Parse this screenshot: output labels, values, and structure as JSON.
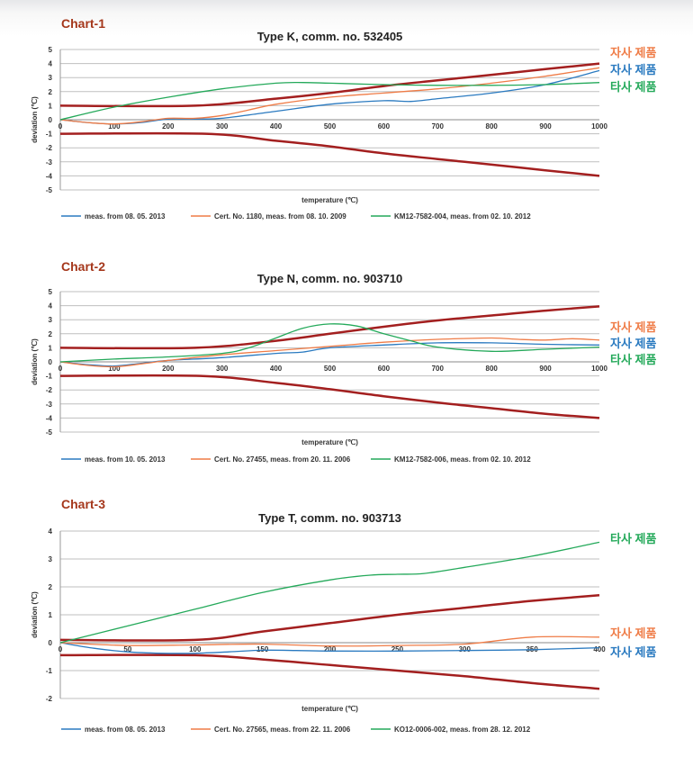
{
  "chart_data": [
    {
      "type": "line",
      "label": "Chart-1",
      "title": "Type K, comm. no. 532405",
      "xlabel": "temperature (℃)",
      "ylabel": "deviation (℃)",
      "xlim": [
        0,
        1000
      ],
      "ylim": [
        -5,
        5
      ],
      "x_ticks": [
        "0",
        "100",
        "200",
        "300",
        "400",
        "500",
        "600",
        "700",
        "800",
        "900",
        "1000"
      ],
      "y_ticks": [
        "5",
        "4",
        "3",
        "2",
        "1",
        "0",
        "-1",
        "-2",
        "-3",
        "-4",
        "-5"
      ],
      "series": [
        {
          "name": "meas. from 08. 05. 2013",
          "color": "#2a7ac0",
          "x": [
            0,
            50,
            100,
            150,
            200,
            250,
            300,
            400,
            500,
            600,
            650,
            700,
            800,
            900,
            1000
          ],
          "y": [
            0,
            -0.2,
            -0.3,
            -0.2,
            0.05,
            0.05,
            0.1,
            0.6,
            1.1,
            1.35,
            1.3,
            1.5,
            1.9,
            2.5,
            3.5
          ]
        },
        {
          "name": "Cert. No. 1180, meas. from 08. 10. 2009",
          "color": "#ef7c47",
          "x": [
            0,
            50,
            100,
            150,
            200,
            250,
            300,
            350,
            400,
            500,
            600,
            700,
            800,
            900,
            1000
          ],
          "y": [
            0,
            -0.2,
            -0.3,
            -0.15,
            0.1,
            0.1,
            0.3,
            0.7,
            1.1,
            1.6,
            1.9,
            2.2,
            2.6,
            3.1,
            3.7
          ]
        },
        {
          "name": "KM12-7582-004, meas. from 02. 10. 2012",
          "color": "#24a95a",
          "x": [
            0,
            100,
            200,
            300,
            400,
            450,
            500,
            600,
            700,
            800,
            900,
            1000
          ],
          "y": [
            0,
            0.9,
            1.6,
            2.2,
            2.6,
            2.65,
            2.6,
            2.5,
            2.45,
            2.45,
            2.5,
            2.65
          ]
        }
      ],
      "tolerance_upper": {
        "x": [
          0,
          250,
          400,
          500,
          600,
          700,
          800,
          900,
          1000
        ],
        "y": [
          1.0,
          1.0,
          1.5,
          1.9,
          2.4,
          2.8,
          3.2,
          3.6,
          4.0
        ]
      },
      "tolerance_lower": {
        "x": [
          0,
          270,
          400,
          500,
          600,
          700,
          800,
          900,
          1000
        ],
        "y": [
          -1.0,
          -1.0,
          -1.5,
          -1.9,
          -2.4,
          -2.8,
          -3.2,
          -3.6,
          -4.0
        ]
      },
      "annotations": [
        {
          "text": "자사 제품",
          "color": "#ef7c47"
        },
        {
          "text": "자사 제품",
          "color": "#2a7ac0"
        },
        {
          "text": "타사 제품",
          "color": "#24a95a"
        }
      ]
    },
    {
      "type": "line",
      "label": "Chart-2",
      "title": "Type N, comm. no. 903710",
      "xlabel": "temperature (℃)",
      "ylabel": "deviation (℃)",
      "xlim": [
        0,
        1000
      ],
      "ylim": [
        -5,
        5
      ],
      "x_ticks": [
        "0",
        "100",
        "200",
        "300",
        "400",
        "500",
        "600",
        "700",
        "800",
        "900",
        "1000"
      ],
      "y_ticks": [
        "5",
        "4",
        "3",
        "2",
        "1",
        "0",
        "-1",
        "-2",
        "-3",
        "-4",
        "-5"
      ],
      "series": [
        {
          "name": "meas. from 10. 05. 2013",
          "color": "#2a7ac0",
          "x": [
            0,
            50,
            100,
            150,
            200,
            300,
            400,
            450,
            500,
            600,
            700,
            800,
            900,
            1000
          ],
          "y": [
            0,
            -0.2,
            -0.3,
            -0.1,
            0.1,
            0.3,
            0.6,
            0.7,
            1.0,
            1.2,
            1.35,
            1.35,
            1.25,
            1.2
          ]
        },
        {
          "name": "Cert. No. 27455, meas. from 20. 11. 2006",
          "color": "#ef7c47",
          "x": [
            0,
            50,
            100,
            150,
            200,
            300,
            400,
            500,
            600,
            700,
            800,
            850,
            900,
            950,
            1000
          ],
          "y": [
            0,
            -0.25,
            -0.35,
            -0.15,
            0.1,
            0.5,
            0.8,
            1.1,
            1.4,
            1.6,
            1.7,
            1.6,
            1.55,
            1.65,
            1.55
          ]
        },
        {
          "name": "KM12-7582-006, meas. from 02. 10. 2012",
          "color": "#24a95a",
          "x": [
            0,
            100,
            200,
            300,
            350,
            400,
            450,
            500,
            550,
            600,
            650,
            700,
            800,
            900,
            1000
          ],
          "y": [
            0,
            0.2,
            0.35,
            0.6,
            1.0,
            1.7,
            2.4,
            2.7,
            2.55,
            2.0,
            1.5,
            1.05,
            0.75,
            0.9,
            1.05
          ]
        }
      ],
      "tolerance_upper": {
        "x": [
          0,
          250,
          400,
          500,
          600,
          700,
          800,
          900,
          1000
        ],
        "y": [
          1.0,
          1.0,
          1.5,
          2.0,
          2.5,
          2.95,
          3.3,
          3.65,
          3.95
        ]
      },
      "tolerance_lower": {
        "x": [
          0,
          260,
          400,
          500,
          600,
          700,
          800,
          900,
          1000
        ],
        "y": [
          -1.0,
          -1.0,
          -1.5,
          -1.95,
          -2.45,
          -2.9,
          -3.3,
          -3.7,
          -4.0
        ]
      },
      "annotations": [
        {
          "text": "자사 제품",
          "color": "#ef7c47"
        },
        {
          "text": "자사 제품",
          "color": "#2a7ac0"
        },
        {
          "text": "타사 제품",
          "color": "#24a95a"
        }
      ]
    },
    {
      "type": "line",
      "label": "Chart-3",
      "title": "Type T, comm. no. 903713",
      "xlabel": "temperature (℃)",
      "ylabel": "deviation (℃)",
      "xlim": [
        0,
        400
      ],
      "ylim": [
        -2,
        4
      ],
      "x_ticks": [
        "0",
        "50",
        "100",
        "150",
        "200",
        "250",
        "300",
        "350",
        "400"
      ],
      "y_ticks": [
        "4",
        "3",
        "2",
        "1",
        "0",
        "-1",
        "-2"
      ],
      "series": [
        {
          "name": "meas. from 08. 05. 2013",
          "color": "#2a7ac0",
          "x": [
            0,
            25,
            50,
            75,
            100,
            125,
            150,
            175,
            200,
            250,
            300,
            350,
            400
          ],
          "y": [
            0,
            -0.2,
            -0.33,
            -0.38,
            -0.38,
            -0.33,
            -0.27,
            -0.28,
            -0.3,
            -0.3,
            -0.28,
            -0.25,
            -0.18
          ]
        },
        {
          "name": "Cert. No. 27565, meas. from 22. 11. 2006",
          "color": "#ef7c47",
          "x": [
            0,
            50,
            100,
            150,
            200,
            250,
            300,
            350,
            400
          ],
          "y": [
            0,
            -0.1,
            -0.08,
            -0.05,
            -0.12,
            -0.1,
            -0.05,
            0.2,
            0.2
          ]
        },
        {
          "name": "KO12-0006-002, meas. from 28. 12. 2012",
          "color": "#24a95a",
          "x": [
            0,
            50,
            100,
            150,
            200,
            230,
            250,
            270,
            300,
            350,
            400
          ],
          "y": [
            0,
            0.6,
            1.2,
            1.8,
            2.25,
            2.42,
            2.45,
            2.48,
            2.7,
            3.1,
            3.6
          ]
        }
      ],
      "tolerance_upper": {
        "x": [
          0,
          100,
          150,
          200,
          250,
          300,
          350,
          400
        ],
        "y": [
          0.1,
          0.1,
          0.4,
          0.7,
          1.0,
          1.25,
          1.5,
          1.7
        ]
      },
      "tolerance_lower": {
        "x": [
          0,
          100,
          150,
          200,
          250,
          300,
          350,
          400
        ],
        "y": [
          -0.45,
          -0.45,
          -0.6,
          -0.8,
          -1.0,
          -1.2,
          -1.45,
          -1.65
        ]
      },
      "annotations": [
        {
          "text": "타사 제품",
          "color": "#24a95a"
        },
        {
          "text": "자사 제품",
          "color": "#ef7c47"
        },
        {
          "text": "자사 제품",
          "color": "#2a7ac0"
        }
      ]
    }
  ],
  "colors": {
    "tolerance": "#a31f1f",
    "grid": "#bfbfbf",
    "label": "#a5371b"
  }
}
